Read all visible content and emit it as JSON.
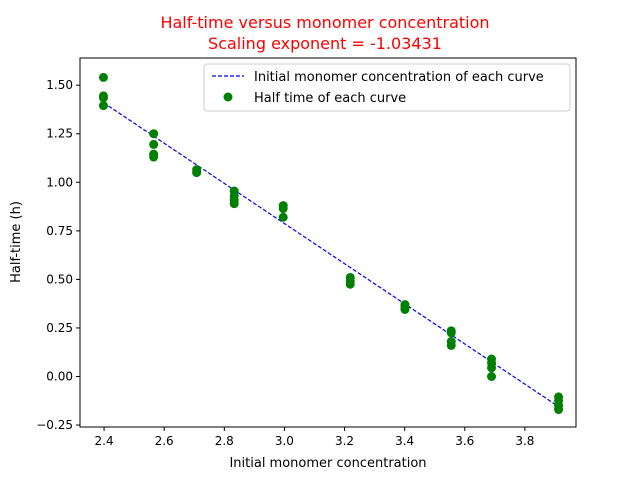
{
  "chart_data": {
    "type": "scatter",
    "title": "Half-time versus monomer concentration",
    "subtitle": "Scaling exponent = -1.03431",
    "xlabel": "Initial monomer concentration",
    "ylabel": "Half-time (h)",
    "xlim": [
      2.32,
      3.97
    ],
    "ylim": [
      -0.26,
      1.64
    ],
    "x_ticks": [
      2.4,
      2.6,
      2.8,
      3.0,
      3.2,
      3.4,
      3.6,
      3.8
    ],
    "y_ticks": [
      -0.25,
      0.0,
      0.25,
      0.5,
      0.75,
      1.0,
      1.25,
      1.5
    ],
    "x_tick_labels": [
      "2.4",
      "2.6",
      "2.8",
      "3.0",
      "3.2",
      "3.4",
      "3.6",
      "3.8"
    ],
    "y_tick_labels": [
      "−0.25",
      "0.00",
      "0.25",
      "0.50",
      "0.75",
      "1.00",
      "1.25",
      "1.50"
    ],
    "grid": false,
    "legend_position": "top-right",
    "series": [
      {
        "name": "Initial monomer concentration of each curve",
        "kind": "line",
        "style": "dashed",
        "color": "#0000ff",
        "x": [
          2.398,
          3.912
        ],
        "y": [
          1.41,
          -0.155
        ]
      },
      {
        "name": "Half time of each curve",
        "kind": "scatter",
        "color": "#008000",
        "points": [
          [
            2.398,
            1.54
          ],
          [
            2.398,
            1.445
          ],
          [
            2.398,
            1.435
          ],
          [
            2.398,
            1.395
          ],
          [
            2.565,
            1.25
          ],
          [
            2.565,
            1.195
          ],
          [
            2.565,
            1.145
          ],
          [
            2.565,
            1.13
          ],
          [
            2.708,
            1.065
          ],
          [
            2.708,
            1.05
          ],
          [
            2.833,
            0.955
          ],
          [
            2.833,
            0.93
          ],
          [
            2.833,
            0.91
          ],
          [
            2.833,
            0.89
          ],
          [
            2.996,
            0.88
          ],
          [
            2.996,
            0.865
          ],
          [
            2.996,
            0.82
          ],
          [
            3.219,
            0.51
          ],
          [
            3.219,
            0.49
          ],
          [
            3.219,
            0.475
          ],
          [
            3.401,
            0.37
          ],
          [
            3.401,
            0.355
          ],
          [
            3.401,
            0.345
          ],
          [
            3.555,
            0.235
          ],
          [
            3.555,
            0.225
          ],
          [
            3.555,
            0.18
          ],
          [
            3.555,
            0.16
          ],
          [
            3.689,
            0.09
          ],
          [
            3.689,
            0.07
          ],
          [
            3.689,
            0.045
          ],
          [
            3.689,
            0.0
          ],
          [
            3.912,
            -0.105
          ],
          [
            3.912,
            -0.125
          ],
          [
            3.912,
            -0.15
          ],
          [
            3.912,
            -0.17
          ]
        ]
      }
    ]
  }
}
